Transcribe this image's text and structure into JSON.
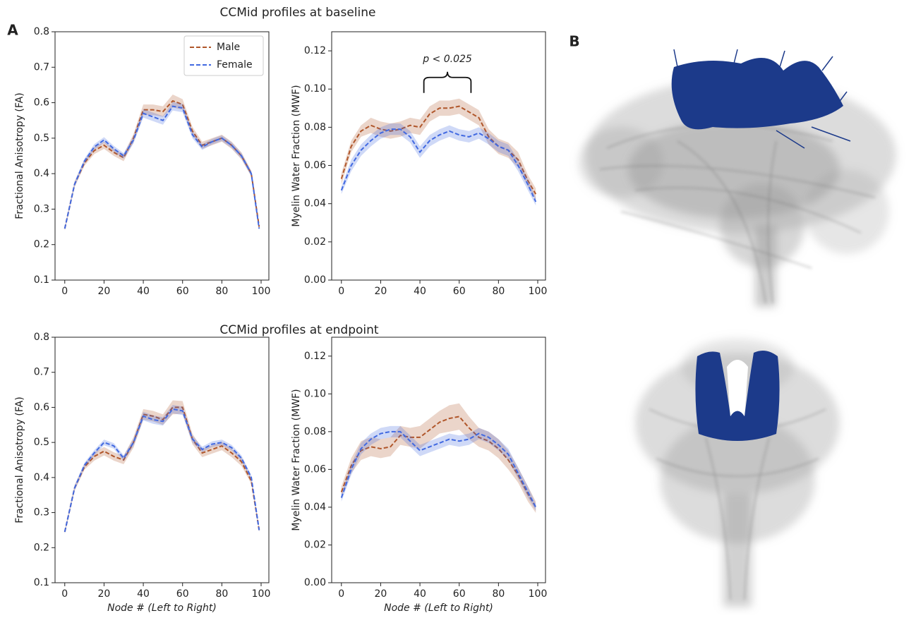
{
  "panel_labels": [
    "A",
    "B"
  ],
  "row_titles": [
    "CCMid profiles at baseline",
    "CCMid profiles at endpoint"
  ],
  "chart_data": [
    {
      "type": "line",
      "ylabel": "Fractional Anisotropy (FA)",
      "legend": "upper right",
      "x": [
        0,
        5,
        10,
        15,
        20,
        25,
        30,
        35,
        40,
        45,
        50,
        55,
        60,
        65,
        70,
        75,
        80,
        85,
        90,
        95,
        99
      ],
      "xlim": [
        -4.95,
        103.95
      ],
      "xticks": [
        0,
        20,
        40,
        60,
        80,
        100
      ],
      "ylim": [
        0.1,
        0.8
      ],
      "yticks": [
        0.1,
        0.2,
        0.3,
        0.4,
        0.5,
        0.6,
        0.7,
        0.8
      ],
      "series": [
        {
          "name": "Male",
          "color": "#b0562a",
          "values": [
            0.245,
            0.37,
            0.43,
            0.465,
            0.48,
            0.46,
            0.445,
            0.5,
            0.58,
            0.58,
            0.575,
            0.605,
            0.595,
            0.52,
            0.48,
            0.49,
            0.5,
            0.48,
            0.45,
            0.4,
            0.25
          ],
          "errors": [
            0.005,
            0.008,
            0.008,
            0.01,
            0.01,
            0.01,
            0.01,
            0.012,
            0.015,
            0.015,
            0.015,
            0.018,
            0.015,
            0.012,
            0.01,
            0.01,
            0.01,
            0.01,
            0.01,
            0.008,
            0.005
          ]
        },
        {
          "name": "Female",
          "color": "#4169e1",
          "values": [
            0.245,
            0.37,
            0.435,
            0.475,
            0.495,
            0.47,
            0.45,
            0.495,
            0.57,
            0.56,
            0.55,
            0.59,
            0.585,
            0.51,
            0.475,
            0.49,
            0.5,
            0.48,
            0.45,
            0.4,
            0.245
          ],
          "errors": [
            0.005,
            0.007,
            0.007,
            0.008,
            0.008,
            0.008,
            0.008,
            0.01,
            0.012,
            0.012,
            0.012,
            0.012,
            0.012,
            0.01,
            0.008,
            0.008,
            0.008,
            0.008,
            0.008,
            0.007,
            0.005
          ]
        }
      ]
    },
    {
      "type": "line",
      "ylabel": "Myelin Water Fraction (MWF)",
      "annotation": "p < 0.025",
      "annotation_range": [
        42,
        66
      ],
      "x": [
        0,
        5,
        10,
        15,
        20,
        25,
        30,
        35,
        40,
        45,
        50,
        55,
        60,
        65,
        70,
        75,
        80,
        85,
        90,
        95,
        99
      ],
      "xlim": [
        -4.95,
        103.95
      ],
      "xticks": [
        0,
        20,
        40,
        60,
        80,
        100
      ],
      "ylim": [
        0,
        0.13
      ],
      "yticks": [
        {
          "value": 0,
          "label": "0.00"
        },
        {
          "value": 0.02,
          "label": "0.02"
        },
        {
          "value": 0.04,
          "label": "0.04"
        },
        {
          "value": 0.06,
          "label": "0.06"
        },
        {
          "value": 0.08,
          "label": "0.08"
        },
        {
          "value": 0.1,
          "label": "0.10"
        },
        {
          "value": 0.12,
          "label": "0.12"
        }
      ],
      "series": [
        {
          "name": "Male",
          "color": "#b0562a",
          "values": [
            0.053,
            0.07,
            0.078,
            0.081,
            0.079,
            0.078,
            0.079,
            0.081,
            0.08,
            0.087,
            0.09,
            0.09,
            0.091,
            0.088,
            0.085,
            0.075,
            0.07,
            0.068,
            0.063,
            0.052,
            0.045
          ],
          "errors": [
            0.003,
            0.003,
            0.003,
            0.004,
            0.004,
            0.004,
            0.004,
            0.004,
            0.004,
            0.004,
            0.004,
            0.004,
            0.004,
            0.004,
            0.004,
            0.004,
            0.004,
            0.004,
            0.004,
            0.003,
            0.003
          ]
        },
        {
          "name": "Female",
          "color": "#4169e1",
          "values": [
            0.047,
            0.06,
            0.068,
            0.073,
            0.077,
            0.079,
            0.079,
            0.075,
            0.067,
            0.073,
            0.076,
            0.078,
            0.076,
            0.075,
            0.077,
            0.074,
            0.07,
            0.068,
            0.06,
            0.05,
            0.041
          ],
          "errors": [
            0.002,
            0.003,
            0.003,
            0.003,
            0.003,
            0.003,
            0.003,
            0.003,
            0.003,
            0.003,
            0.003,
            0.003,
            0.003,
            0.003,
            0.003,
            0.003,
            0.003,
            0.003,
            0.003,
            0.003,
            0.002
          ]
        }
      ]
    },
    {
      "type": "line",
      "ylabel": "Fractional Anisotropy (FA)",
      "xlabel": "Node # (Left to Right)",
      "x": [
        0,
        5,
        10,
        15,
        20,
        25,
        30,
        35,
        40,
        45,
        50,
        55,
        60,
        65,
        70,
        75,
        80,
        85,
        90,
        95,
        99
      ],
      "xlim": [
        -4.95,
        103.95
      ],
      "xticks": [
        0,
        20,
        40,
        60,
        80,
        100
      ],
      "ylim": [
        0.1,
        0.8
      ],
      "yticks": [
        0.1,
        0.2,
        0.3,
        0.4,
        0.5,
        0.6,
        0.7,
        0.8
      ],
      "series": [
        {
          "name": "Male",
          "color": "#b0562a",
          "values": [
            0.245,
            0.37,
            0.43,
            0.46,
            0.475,
            0.46,
            0.45,
            0.5,
            0.58,
            0.575,
            0.565,
            0.6,
            0.6,
            0.51,
            0.47,
            0.48,
            0.49,
            0.47,
            0.445,
            0.39,
            0.25
          ],
          "errors": [
            0.005,
            0.008,
            0.008,
            0.012,
            0.012,
            0.012,
            0.012,
            0.015,
            0.015,
            0.015,
            0.015,
            0.02,
            0.018,
            0.015,
            0.012,
            0.012,
            0.012,
            0.012,
            0.012,
            0.008,
            0.005
          ]
        },
        {
          "name": "Female",
          "color": "#4169e1",
          "values": [
            0.245,
            0.37,
            0.435,
            0.47,
            0.5,
            0.49,
            0.455,
            0.5,
            0.575,
            0.565,
            0.56,
            0.595,
            0.59,
            0.51,
            0.48,
            0.495,
            0.5,
            0.485,
            0.455,
            0.4,
            0.25
          ],
          "errors": [
            0.005,
            0.007,
            0.007,
            0.008,
            0.008,
            0.008,
            0.008,
            0.01,
            0.012,
            0.012,
            0.012,
            0.012,
            0.012,
            0.01,
            0.008,
            0.008,
            0.008,
            0.008,
            0.008,
            0.007,
            0.005
          ]
        }
      ]
    },
    {
      "type": "line",
      "ylabel": "Myelin Water Fraction (MWF)",
      "xlabel": "Node # (Left to Right)",
      "x": [
        0,
        5,
        10,
        15,
        20,
        25,
        30,
        35,
        40,
        45,
        50,
        55,
        60,
        65,
        70,
        75,
        80,
        85,
        90,
        95,
        99
      ],
      "xlim": [
        -4.95,
        103.95
      ],
      "xticks": [
        0,
        20,
        40,
        60,
        80,
        100
      ],
      "ylim": [
        0,
        0.13
      ],
      "yticks": [
        {
          "value": 0,
          "label": "0.00"
        },
        {
          "value": 0.02,
          "label": "0.02"
        },
        {
          "value": 0.04,
          "label": "0.04"
        },
        {
          "value": 0.06,
          "label": "0.06"
        },
        {
          "value": 0.08,
          "label": "0.08"
        },
        {
          "value": 0.1,
          "label": "0.10"
        },
        {
          "value": 0.12,
          "label": "0.12"
        }
      ],
      "series": [
        {
          "name": "Male",
          "color": "#b0562a",
          "values": [
            0.048,
            0.062,
            0.07,
            0.072,
            0.071,
            0.072,
            0.078,
            0.077,
            0.077,
            0.081,
            0.085,
            0.087,
            0.088,
            0.082,
            0.077,
            0.075,
            0.071,
            0.065,
            0.057,
            0.047,
            0.04
          ],
          "errors": [
            0.003,
            0.004,
            0.005,
            0.005,
            0.005,
            0.005,
            0.005,
            0.005,
            0.006,
            0.006,
            0.006,
            0.007,
            0.007,
            0.006,
            0.005,
            0.005,
            0.005,
            0.005,
            0.004,
            0.004,
            0.003
          ]
        },
        {
          "name": "Female",
          "color": "#4169e1",
          "values": [
            0.045,
            0.06,
            0.071,
            0.076,
            0.079,
            0.08,
            0.08,
            0.075,
            0.07,
            0.072,
            0.074,
            0.076,
            0.075,
            0.076,
            0.079,
            0.077,
            0.073,
            0.068,
            0.058,
            0.048,
            0.04
          ],
          "errors": [
            0.002,
            0.003,
            0.003,
            0.003,
            0.003,
            0.003,
            0.003,
            0.003,
            0.003,
            0.003,
            0.003,
            0.003,
            0.003,
            0.003,
            0.003,
            0.003,
            0.003,
            0.003,
            0.003,
            0.003,
            0.002
          ]
        }
      ]
    }
  ]
}
